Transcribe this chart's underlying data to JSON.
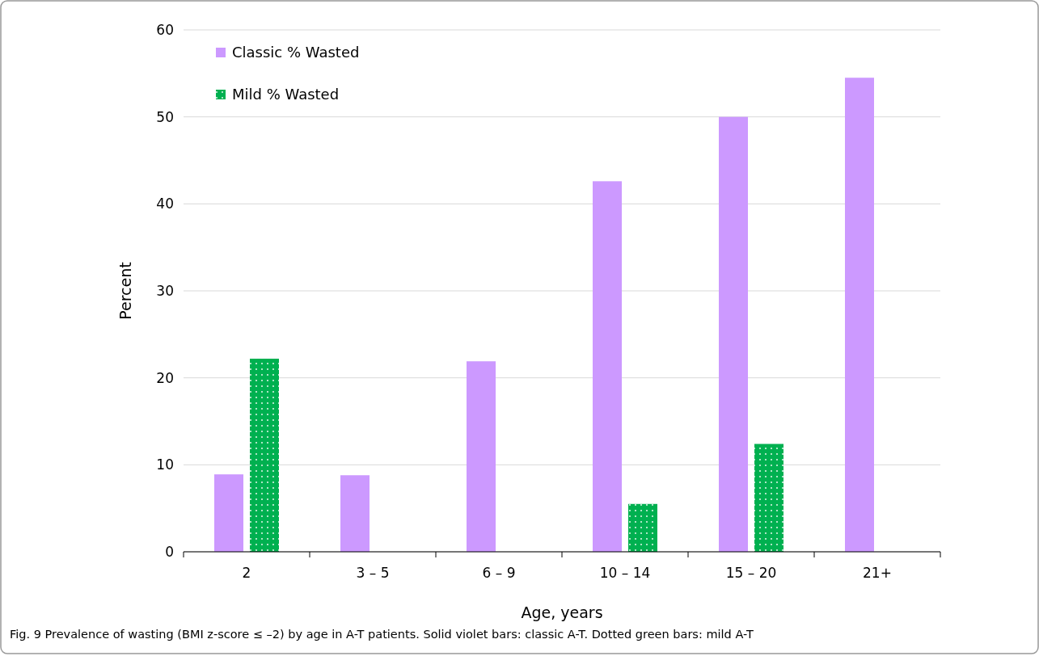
{
  "chart_data": {
    "type": "bar",
    "xlabel": "Age, years",
    "ylabel": "Percent",
    "categories": [
      "2",
      "3 – 5",
      "6 – 9",
      "10 – 14",
      "15 – 20",
      "21+"
    ],
    "series": [
      {
        "name": "Classic % Wasted",
        "color": "#cc99ff",
        "values": [
          8.9,
          8.8,
          21.9,
          42.6,
          50.0,
          54.5
        ]
      },
      {
        "name": "Mild % Wasted",
        "color": "#00b050",
        "values": [
          22.2,
          0,
          0,
          5.5,
          12.4,
          0
        ]
      }
    ],
    "ylim": [
      0,
      60
    ],
    "yticks": [
      0,
      10,
      20,
      30,
      40,
      50,
      60
    ],
    "grid": "y",
    "legend": "top left",
    "annotations": [
      "Fig. 9 Prevalence of wasting (BMI z-score ≤ –2) by age in A-T patients. Solid violet bars: classic A-T. Dotted green bars: mild A-T"
    ]
  }
}
